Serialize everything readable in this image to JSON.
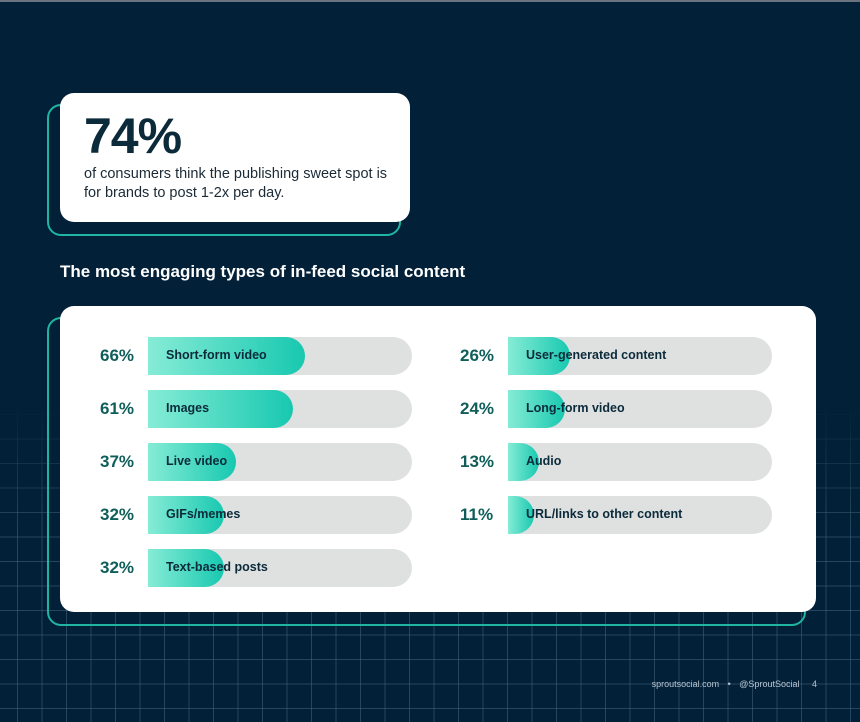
{
  "stat": {
    "value": "74%",
    "description": "of consumers think the publishing sweet spot is for brands to post 1-2x per day."
  },
  "heading": "The most engaging types of in-feed social content",
  "chart_data": {
    "type": "bar",
    "orientation": "horizontal",
    "categories": [
      "Short-form video",
      "Images",
      "Live video",
      "GIFs/memes",
      "Text-based posts",
      "User-generated content",
      "Long-form video",
      "Audio",
      "URL/links to other content"
    ],
    "values": [
      66,
      61,
      37,
      32,
      32,
      26,
      24,
      13,
      11
    ],
    "labels": [
      "66%",
      "61%",
      "37%",
      "32%",
      "32%",
      "26%",
      "24%",
      "13%",
      "11%"
    ],
    "unit": "%",
    "colors": {
      "fill_start": "#86ecd6",
      "fill_end": "#18c8b0",
      "track": "#dfe1e1"
    }
  },
  "footer": {
    "site": "sproutsocial.com",
    "separator": "•",
    "handle": "@SproutSocial",
    "page": "4"
  }
}
